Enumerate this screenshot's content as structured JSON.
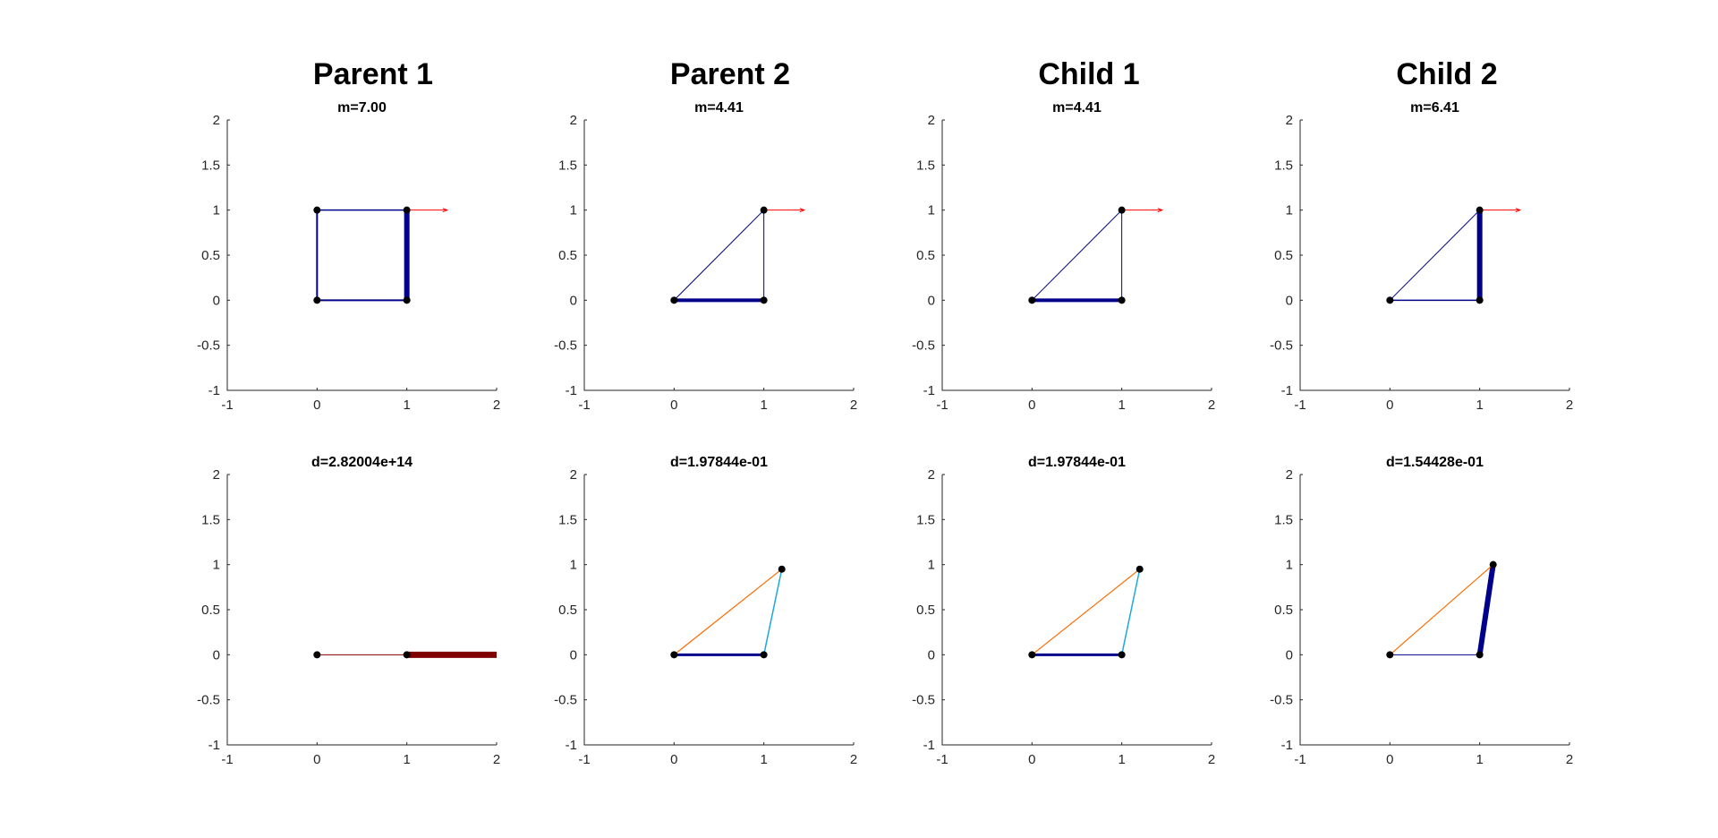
{
  "column_titles": [
    "Parent 1",
    "Parent 2",
    "Child 1",
    "Child 2"
  ],
  "colors": {
    "background": "#ffffff",
    "axis": "#262626",
    "node": "#000000",
    "load_arrow": "#ff0000",
    "member_blue": "#00008b",
    "member_darkred": "#800000",
    "member_orange": "#ff6a00",
    "member_cyan": "#1ea7e6"
  },
  "chart_data": [
    {
      "type": "scatter",
      "panel": "top-1",
      "title": "m=7.00",
      "xlim": [
        -1,
        2
      ],
      "ylim": [
        -1,
        2
      ],
      "xticks": [
        -1,
        0,
        1,
        2
      ],
      "yticks": [
        -1,
        -0.5,
        0,
        0.5,
        1,
        1.5,
        2
      ],
      "nodes": [
        [
          0,
          0
        ],
        [
          1,
          0
        ],
        [
          1,
          1
        ],
        [
          0,
          1
        ]
      ],
      "members": [
        {
          "from": [
            0,
            0
          ],
          "to": [
            1,
            0
          ],
          "color": "#00008b",
          "weight": 2
        },
        {
          "from": [
            1,
            0
          ],
          "to": [
            1,
            1
          ],
          "color": "#00008b",
          "weight": 6
        },
        {
          "from": [
            1,
            1
          ],
          "to": [
            0,
            1
          ],
          "color": "#00008b",
          "weight": 1.5
        },
        {
          "from": [
            0,
            1
          ],
          "to": [
            0,
            0
          ],
          "color": "#00008b",
          "weight": 2
        }
      ],
      "load": {
        "from": [
          1,
          1
        ],
        "to": [
          1.45,
          1
        ],
        "color": "#ff0000"
      }
    },
    {
      "type": "scatter",
      "panel": "top-2",
      "title": "m=4.41",
      "xlim": [
        -1,
        2
      ],
      "ylim": [
        -1,
        2
      ],
      "xticks": [
        -1,
        0,
        1,
        2
      ],
      "yticks": [
        -1,
        -0.5,
        0,
        0.5,
        1,
        1.5,
        2
      ],
      "nodes": [
        [
          0,
          0
        ],
        [
          1,
          0
        ],
        [
          1,
          1
        ]
      ],
      "members": [
        {
          "from": [
            0,
            0
          ],
          "to": [
            1,
            0
          ],
          "color": "#00008b",
          "weight": 4
        },
        {
          "from": [
            1,
            0
          ],
          "to": [
            1,
            1
          ],
          "color": "#00008b",
          "weight": 1
        },
        {
          "from": [
            0,
            0
          ],
          "to": [
            1,
            1
          ],
          "color": "#00008b",
          "weight": 1
        }
      ],
      "load": {
        "from": [
          1,
          1
        ],
        "to": [
          1.45,
          1
        ],
        "color": "#ff0000"
      }
    },
    {
      "type": "scatter",
      "panel": "top-3",
      "title": "m=4.41",
      "xlim": [
        -1,
        2
      ],
      "ylim": [
        -1,
        2
      ],
      "xticks": [
        -1,
        0,
        1,
        2
      ],
      "yticks": [
        -1,
        -0.5,
        0,
        0.5,
        1,
        1.5,
        2
      ],
      "nodes": [
        [
          0,
          0
        ],
        [
          1,
          0
        ],
        [
          1,
          1
        ]
      ],
      "members": [
        {
          "from": [
            0,
            0
          ],
          "to": [
            1,
            0
          ],
          "color": "#00008b",
          "weight": 4
        },
        {
          "from": [
            1,
            0
          ],
          "to": [
            1,
            1
          ],
          "color": "#00008b",
          "weight": 1
        },
        {
          "from": [
            0,
            0
          ],
          "to": [
            1,
            1
          ],
          "color": "#00008b",
          "weight": 1
        }
      ],
      "load": {
        "from": [
          1,
          1
        ],
        "to": [
          1.45,
          1
        ],
        "color": "#ff0000"
      }
    },
    {
      "type": "scatter",
      "panel": "top-4",
      "title": "m=6.41",
      "xlim": [
        -1,
        2
      ],
      "ylim": [
        -1,
        2
      ],
      "xticks": [
        -1,
        0,
        1,
        2
      ],
      "yticks": [
        -1,
        -0.5,
        0,
        0.5,
        1,
        1.5,
        2
      ],
      "nodes": [
        [
          0,
          0
        ],
        [
          1,
          0
        ],
        [
          1,
          1
        ]
      ],
      "members": [
        {
          "from": [
            0,
            0
          ],
          "to": [
            1,
            0
          ],
          "color": "#00008b",
          "weight": 1.5
        },
        {
          "from": [
            1,
            0
          ],
          "to": [
            1,
            1
          ],
          "color": "#00008b",
          "weight": 6
        },
        {
          "from": [
            0,
            0
          ],
          "to": [
            1,
            1
          ],
          "color": "#00008b",
          "weight": 1
        }
      ],
      "load": {
        "from": [
          1,
          1
        ],
        "to": [
          1.45,
          1
        ],
        "color": "#ff0000"
      }
    },
    {
      "type": "scatter",
      "panel": "bottom-1",
      "title": "d=2.82004e+14",
      "xlim": [
        -1,
        2
      ],
      "ylim": [
        -1,
        2
      ],
      "xticks": [
        -1,
        0,
        1,
        2
      ],
      "yticks": [
        -1,
        -0.5,
        0,
        0.5,
        1,
        1.5,
        2
      ],
      "nodes": [
        [
          0,
          0
        ],
        [
          1,
          0
        ]
      ],
      "members": [
        {
          "from": [
            0,
            0
          ],
          "to": [
            1,
            0
          ],
          "color": "#800000",
          "weight": 1
        },
        {
          "from": [
            1,
            0
          ],
          "to": [
            2,
            0
          ],
          "color": "#800000",
          "weight": 7
        }
      ]
    },
    {
      "type": "scatter",
      "panel": "bottom-2",
      "title": "d=1.97844e-01",
      "xlim": [
        -1,
        2
      ],
      "ylim": [
        -1,
        2
      ],
      "xticks": [
        -1,
        0,
        1,
        2
      ],
      "yticks": [
        -1,
        -0.5,
        0,
        0.5,
        1,
        1.5,
        2
      ],
      "nodes": [
        [
          0,
          0
        ],
        [
          1,
          0
        ],
        [
          1.2,
          0.95
        ]
      ],
      "members": [
        {
          "from": [
            0,
            0
          ],
          "to": [
            1,
            0
          ],
          "color": "#00008b",
          "weight": 3
        },
        {
          "from": [
            1,
            0
          ],
          "to": [
            1.2,
            0.95
          ],
          "color": "#1ea7e6",
          "weight": 1.5
        },
        {
          "from": [
            0,
            0
          ],
          "to": [
            1.2,
            0.95
          ],
          "color": "#ff6a00",
          "weight": 1.2
        }
      ]
    },
    {
      "type": "scatter",
      "panel": "bottom-3",
      "title": "d=1.97844e-01",
      "xlim": [
        -1,
        2
      ],
      "ylim": [
        -1,
        2
      ],
      "xticks": [
        -1,
        0,
        1,
        2
      ],
      "yticks": [
        -1,
        -0.5,
        0,
        0.5,
        1,
        1.5,
        2
      ],
      "nodes": [
        [
          0,
          0
        ],
        [
          1,
          0
        ],
        [
          1.2,
          0.95
        ]
      ],
      "members": [
        {
          "from": [
            0,
            0
          ],
          "to": [
            1,
            0
          ],
          "color": "#00008b",
          "weight": 3
        },
        {
          "from": [
            1,
            0
          ],
          "to": [
            1.2,
            0.95
          ],
          "color": "#1ea7e6",
          "weight": 1.5
        },
        {
          "from": [
            0,
            0
          ],
          "to": [
            1.2,
            0.95
          ],
          "color": "#ff6a00",
          "weight": 1.2
        }
      ]
    },
    {
      "type": "scatter",
      "panel": "bottom-4",
      "title": "d=1.54428e-01",
      "xlim": [
        -1,
        2
      ],
      "ylim": [
        -1,
        2
      ],
      "xticks": [
        -1,
        0,
        1,
        2
      ],
      "yticks": [
        -1,
        -0.5,
        0,
        0.5,
        1,
        1.5,
        2
      ],
      "nodes": [
        [
          0,
          0
        ],
        [
          1,
          0
        ],
        [
          1.15,
          1
        ]
      ],
      "members": [
        {
          "from": [
            0,
            0
          ],
          "to": [
            1,
            0
          ],
          "color": "#00008b",
          "weight": 1
        },
        {
          "from": [
            1,
            0
          ],
          "to": [
            1.15,
            1
          ],
          "color": "#00008b",
          "weight": 6
        },
        {
          "from": [
            0,
            0
          ],
          "to": [
            1.15,
            1
          ],
          "color": "#ff6a00",
          "weight": 1.2
        }
      ]
    }
  ]
}
